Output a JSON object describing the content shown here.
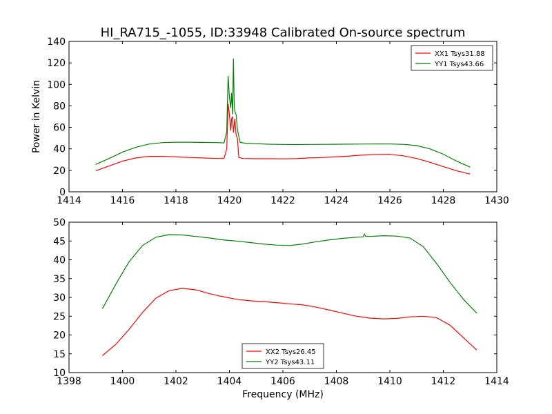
{
  "title": "HI_RA715_-1055, ID:33948 Calibrated On-source spectrum",
  "chart_data": [
    {
      "type": "line",
      "title": "HI_RA715_-1055, ID:33948 Calibrated On-source spectrum",
      "xlabel": "",
      "ylabel": "Power in Kelvin",
      "xlim": [
        1414,
        1430
      ],
      "ylim": [
        0,
        140
      ],
      "xticks": [
        "1414",
        "1416",
        "1418",
        "1420",
        "1422",
        "1424",
        "1426",
        "1428",
        "1430"
      ],
      "yticks": [
        "0",
        "20",
        "40",
        "60",
        "80",
        "100",
        "120",
        "140"
      ],
      "legend_position": "top-right",
      "series": [
        {
          "name": "XX1 Tsys31.88",
          "color": "#ff0000",
          "x": [
            1415.0,
            1415.5,
            1416.0,
            1416.5,
            1417.0,
            1417.5,
            1418.0,
            1418.5,
            1419.0,
            1419.5,
            1419.8,
            1419.9,
            1419.95,
            1420.0,
            1420.05,
            1420.08,
            1420.12,
            1420.15,
            1420.2,
            1420.25,
            1420.3,
            1420.35,
            1420.5,
            1421.0,
            1421.5,
            1422.0,
            1422.5,
            1423.0,
            1423.5,
            1424.0,
            1424.5,
            1425.0,
            1425.5,
            1426.0,
            1426.5,
            1427.0,
            1427.5,
            1428.0,
            1428.5,
            1429.0
          ],
          "y": [
            19.5,
            24.0,
            28.5,
            31.5,
            33.0,
            33.0,
            32.5,
            32.0,
            31.5,
            31.0,
            31.0,
            40.0,
            82.0,
            72.0,
            57.0,
            68.0,
            70.0,
            55.0,
            68.0,
            53.0,
            50.0,
            32.0,
            31.0,
            30.8,
            30.8,
            30.7,
            30.9,
            31.5,
            32.0,
            32.5,
            33.3,
            34.3,
            34.8,
            34.9,
            33.5,
            31.0,
            27.5,
            23.5,
            19.5,
            16.5
          ]
        },
        {
          "name": "YY1 Tsys43.66",
          "color": "#008000",
          "x": [
            1415.0,
            1415.5,
            1416.0,
            1416.5,
            1417.0,
            1417.5,
            1418.0,
            1418.5,
            1419.0,
            1419.5,
            1419.8,
            1419.9,
            1419.95,
            1420.0,
            1420.05,
            1420.08,
            1420.12,
            1420.15,
            1420.18,
            1420.2,
            1420.25,
            1420.3,
            1420.4,
            1420.6,
            1421.0,
            1421.5,
            1422.0,
            1422.5,
            1423.0,
            1423.5,
            1424.0,
            1424.5,
            1425.0,
            1425.5,
            1426.0,
            1426.5,
            1427.0,
            1427.5,
            1428.0,
            1428.5,
            1429.0
          ],
          "y": [
            25.5,
            31.0,
            37.0,
            41.5,
            44.5,
            45.8,
            46.2,
            46.2,
            46.0,
            45.8,
            45.5,
            56.0,
            108.0,
            88.0,
            78.0,
            92.0,
            72.0,
            124.0,
            80.0,
            75.0,
            72.0,
            58.0,
            46.0,
            45.2,
            44.8,
            44.3,
            44.1,
            44.0,
            44.1,
            44.2,
            44.3,
            44.4,
            44.5,
            44.6,
            44.6,
            44.2,
            43.0,
            40.0,
            35.0,
            28.5,
            23.0
          ]
        }
      ]
    },
    {
      "type": "line",
      "title": "",
      "xlabel": "Frequency (MHz)",
      "ylabel": "",
      "xlim": [
        1398,
        1414
      ],
      "ylim": [
        10,
        50
      ],
      "xticks": [
        "1398",
        "1400",
        "1402",
        "1404",
        "1406",
        "1408",
        "1410",
        "1412",
        "1414"
      ],
      "yticks": [
        "10",
        "15",
        "20",
        "25",
        "30",
        "35",
        "40",
        "45",
        "50"
      ],
      "legend_position": "bottom-center",
      "series": [
        {
          "name": "XX2 Tsys26.45",
          "color": "#ff0000",
          "x": [
            1399.25,
            1399.75,
            1400.25,
            1400.75,
            1401.25,
            1401.75,
            1402.25,
            1402.75,
            1403.25,
            1403.75,
            1404.25,
            1404.75,
            1405.25,
            1405.75,
            1406.25,
            1406.75,
            1407.25,
            1407.75,
            1408.25,
            1408.75,
            1409.25,
            1409.75,
            1410.25,
            1410.75,
            1411.25,
            1411.75,
            1412.25,
            1412.75,
            1413.25
          ],
          "y": [
            14.5,
            17.5,
            21.5,
            26.0,
            29.8,
            31.8,
            32.4,
            32.0,
            31.0,
            30.2,
            29.5,
            29.1,
            28.9,
            28.6,
            28.3,
            28.0,
            27.4,
            26.6,
            25.8,
            25.0,
            24.5,
            24.3,
            24.4,
            24.8,
            25.0,
            24.6,
            22.6,
            19.3,
            16.0
          ]
        },
        {
          "name": "YY2 Tsys43.11",
          "color": "#008000",
          "x": [
            1399.25,
            1399.75,
            1400.25,
            1400.75,
            1401.25,
            1401.75,
            1402.25,
            1402.75,
            1403.25,
            1403.75,
            1404.25,
            1404.75,
            1405.25,
            1405.75,
            1406.25,
            1406.75,
            1407.25,
            1407.75,
            1408.25,
            1408.75,
            1409.0,
            1409.05,
            1409.1,
            1409.25,
            1409.75,
            1410.25,
            1410.75,
            1411.25,
            1411.75,
            1412.25,
            1412.75,
            1413.25
          ],
          "y": [
            27.0,
            33.5,
            39.5,
            43.8,
            46.0,
            46.7,
            46.6,
            46.2,
            45.8,
            45.3,
            45.0,
            44.6,
            44.2,
            43.9,
            43.8,
            44.2,
            44.8,
            45.3,
            45.7,
            46.0,
            46.1,
            46.8,
            46.2,
            46.2,
            46.4,
            46.3,
            45.8,
            43.5,
            39.0,
            34.0,
            29.5,
            25.8
          ]
        }
      ]
    }
  ]
}
